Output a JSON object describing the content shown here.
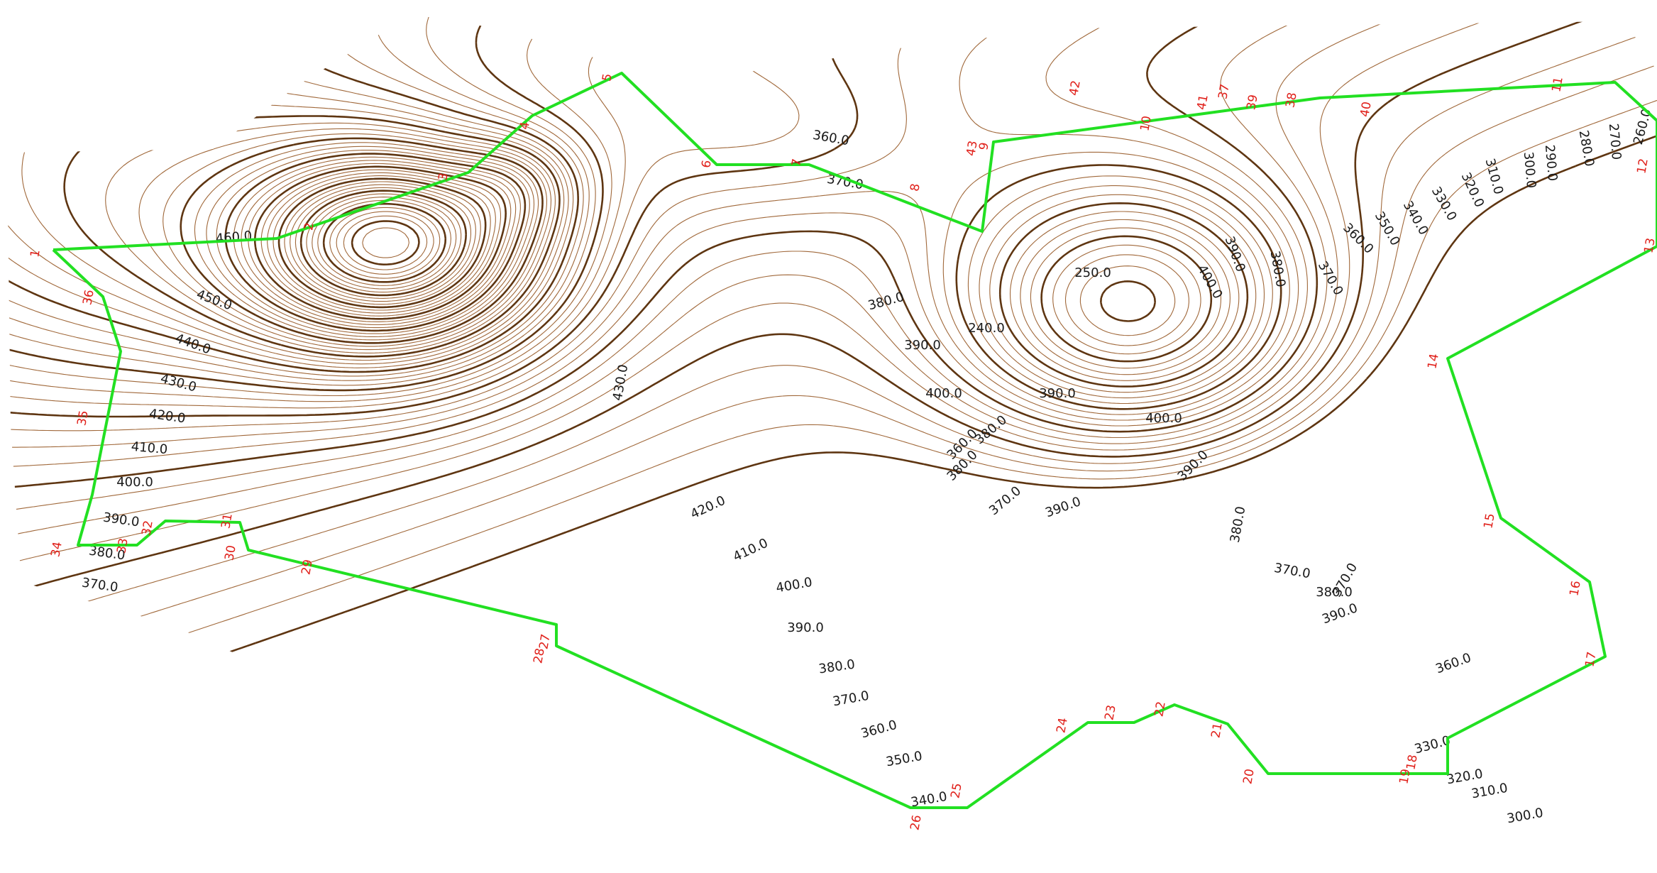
{
  "colors": {
    "contour_minor": "#a0683a",
    "contour_major": "#5e3511",
    "boundary": "#22e022",
    "vertex_label": "#e0201a",
    "elevation_label": "#1a1a1a"
  },
  "elevation_labels": [
    "460.0",
    "450.0",
    "440.0",
    "430.0",
    "420.0",
    "410.0",
    "400.0",
    "390.0",
    "380.0",
    "370.0",
    "360.0",
    "370.0",
    "380.0",
    "390.0",
    "430.0",
    "420.0",
    "410.0",
    "400.0",
    "390.0",
    "380.0",
    "370.0",
    "360.0",
    "350.0",
    "340.0",
    "330.0",
    "320.0",
    "310.0",
    "300.0",
    "360.0",
    "370.0",
    "380.0",
    "390.0",
    "400.0",
    "390.0",
    "380.0",
    "370.0",
    "400.0",
    "390.0",
    "380.0",
    "370.0",
    "360.0",
    "350.0",
    "340.0",
    "330.0",
    "320.0",
    "310.0",
    "300.0",
    "290.0",
    "280.0",
    "270.0",
    "260.0",
    "250.0",
    "240.0",
    "380.0",
    "390.0",
    "360.0",
    "370.0",
    "380.0",
    "390.0",
    "400.0"
  ],
  "boundary_vertices": [
    "1",
    "2",
    "3",
    "4",
    "5",
    "6",
    "7",
    "8",
    "9",
    "10",
    "11",
    "12",
    "13",
    "14",
    "15",
    "16",
    "17",
    "18",
    "19",
    "20",
    "21",
    "22",
    "23",
    "24",
    "25",
    "26",
    "27",
    "28",
    "29",
    "30",
    "31",
    "32",
    "33",
    "34",
    "35",
    "36",
    "37",
    "38",
    "39",
    "40",
    "41",
    "42",
    "43"
  ]
}
